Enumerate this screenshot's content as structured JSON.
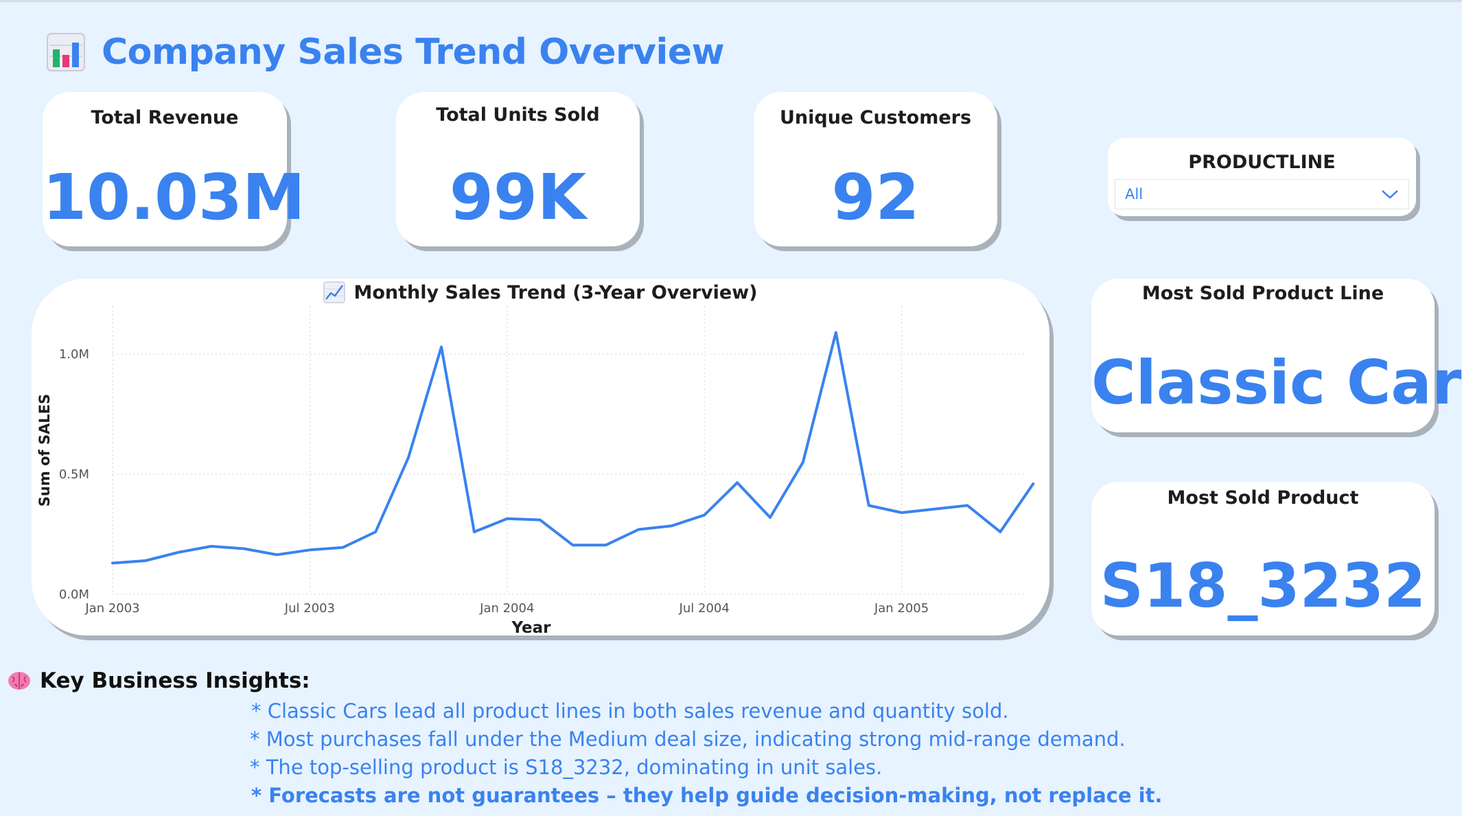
{
  "header": {
    "title": "Company Sales Trend Overview",
    "icon": "bar-chart-icon"
  },
  "kpis": [
    {
      "label": "Total Revenue",
      "value": "10.03M"
    },
    {
      "label": "Total Units Sold",
      "value": "99K"
    },
    {
      "label": "Unique Customers",
      "value": "92"
    }
  ],
  "slicer": {
    "label": "PRODUCTLINE",
    "selected": "All"
  },
  "highlights": {
    "product_line": {
      "label": "Most Sold Product Line",
      "value": "Classic Cars"
    },
    "product": {
      "label": "Most Sold Product",
      "value": "S18_3232"
    }
  },
  "chart": {
    "title": "Monthly Sales Trend (3-Year Overview)",
    "icon": "line-chart-icon"
  },
  "chart_data": {
    "type": "line",
    "title": "Monthly Sales Trend (3-Year Overview)",
    "xlabel": "Year",
    "ylabel": "Sum of SALES",
    "x_ticks": [
      "Jan 2003",
      "Jul 2003",
      "Jan 2004",
      "Jul 2004",
      "Jan 2005"
    ],
    "y_ticks": [
      "0.0M",
      "0.5M",
      "1.0M"
    ],
    "ylim": [
      0,
      1.2
    ],
    "grid": true,
    "x": [
      "2003-01",
      "2003-02",
      "2003-03",
      "2003-04",
      "2003-05",
      "2003-06",
      "2003-07",
      "2003-08",
      "2003-09",
      "2003-10",
      "2003-11",
      "2003-12",
      "2004-01",
      "2004-02",
      "2004-03",
      "2004-04",
      "2004-05",
      "2004-06",
      "2004-07",
      "2004-08",
      "2004-09",
      "2004-10",
      "2004-11",
      "2004-12",
      "2005-01",
      "2005-02",
      "2005-03",
      "2005-04",
      "2005-05"
    ],
    "values": [
      0.13,
      0.14,
      0.175,
      0.2,
      0.19,
      0.165,
      0.185,
      0.195,
      0.26,
      0.57,
      1.03,
      0.26,
      0.315,
      0.31,
      0.205,
      0.205,
      0.27,
      0.285,
      0.33,
      0.465,
      0.32,
      0.55,
      1.09,
      0.37,
      0.34,
      0.355,
      0.37,
      0.26,
      0.46
    ]
  },
  "insights": {
    "heading": "Key Business Insights:",
    "icon": "brain-icon",
    "items": [
      "* Classic Cars lead all product lines in both sales revenue and quantity sold.",
      "* Most purchases fall under the Medium deal size, indicating strong mid-range demand.",
      "* The top-selling product is S18_3232, dominating in unit sales.",
      "* Forecasts are not guarantees – they help guide decision-making, not replace it."
    ]
  },
  "colors": {
    "accent": "#3a82ef",
    "background": "#e7f3fe",
    "card": "#ffffff",
    "shadow": "#a9b1ba"
  }
}
